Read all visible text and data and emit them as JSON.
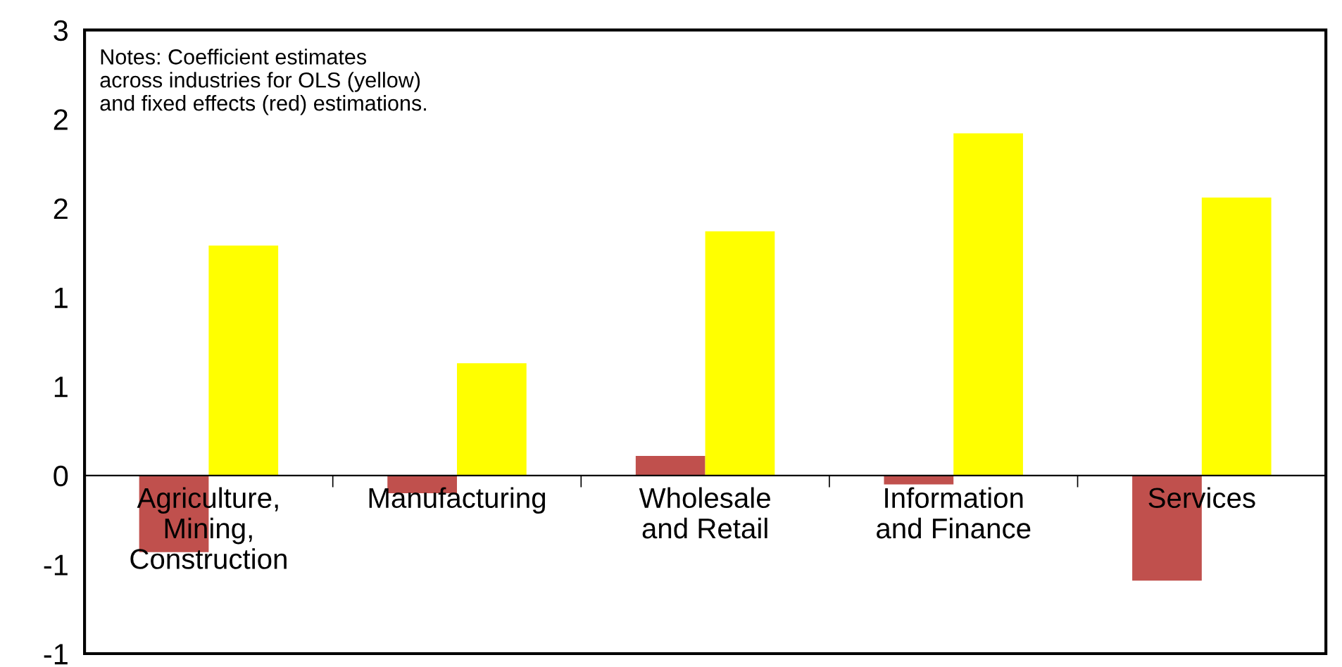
{
  "chart_data": {
    "type": "bar",
    "categories": [
      "Agriculture,\nMining,\nConstruction",
      "Manufacturing",
      "Wholesale\nand Retail",
      "Information\nand Finance",
      "Services"
    ],
    "series": [
      {
        "color": "#c0504d",
        "values": [
          -0.43,
          -0.1,
          0.11,
          -0.05,
          -0.59
        ]
      },
      {
        "color": "#ffff00",
        "values": [
          1.29,
          0.63,
          1.37,
          1.92,
          1.56
        ]
      }
    ],
    "ylim": [
      -1,
      2.5
    ],
    "yticks": [
      {
        "value": -1,
        "label": "-1"
      },
      {
        "value": -0.5,
        "label": "-1"
      },
      0,
      {
        "value": 0.5,
        "label": "1"
      },
      1,
      {
        "value": 1.5,
        "label": "2"
      },
      2,
      {
        "value": 2.5,
        "label": "3"
      }
    ],
    "grid": false,
    "legend": false,
    "annotations": [
      "Notes: Coefficient estimates\nacross industries for OLS (yellow)\nand fixed effects (red) estimations."
    ]
  }
}
